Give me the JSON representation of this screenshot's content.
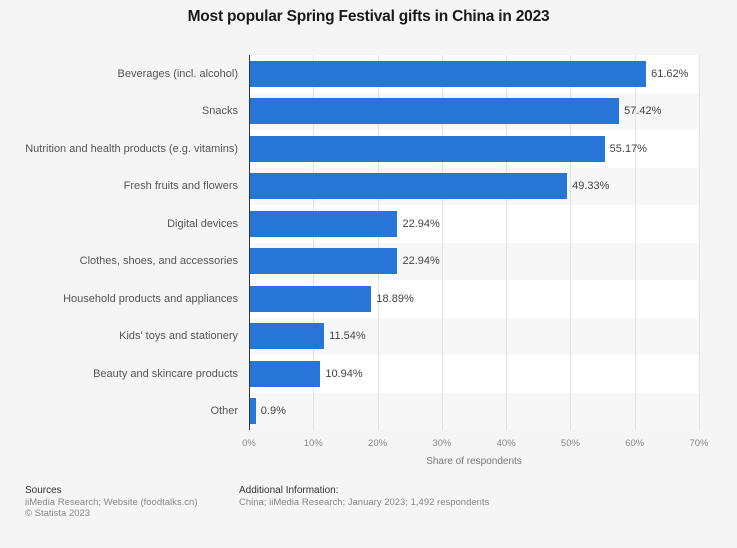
{
  "title": "Most popular Spring Festival gifts in China in 2023",
  "chart_data": {
    "type": "bar",
    "orientation": "horizontal",
    "title": "Most popular Spring Festival gifts in China in 2023",
    "categories": [
      "Beverages (incl. alcohol)",
      "Snacks",
      "Nutrition and health products (e.g. vitamins)",
      "Fresh fruits and flowers",
      "Digital devices",
      "Clothes, shoes, and accessories",
      "Household products and appliances",
      "Kids' toys and stationery",
      "Beauty and skincare products",
      "Other"
    ],
    "values": [
      61.62,
      57.42,
      55.17,
      49.33,
      22.94,
      22.94,
      18.89,
      11.54,
      10.94,
      0.9
    ],
    "value_labels": [
      "61.62%",
      "57.42%",
      "55.17%",
      "49.33%",
      "22.94%",
      "22.94%",
      "18.89%",
      "11.54%",
      "10.94%",
      "0.9%"
    ],
    "xlabel": "Share of respondents",
    "ylabel": "",
    "xlim": [
      0,
      70
    ],
    "xticks": [
      "0%",
      "10%",
      "20%",
      "30%",
      "40%",
      "50%",
      "60%",
      "70%"
    ],
    "grid": true,
    "legend": null,
    "bar_color": "#2875d8"
  },
  "footer": {
    "sources_heading": "Sources",
    "sources_text": "iiMedia Research; Website (foodtalks.cn)",
    "copyright": "© Statista 2023",
    "additional_heading": "Additional Information:",
    "additional_text": "China; iiMedia Research; January 2023; 1,492 respondents"
  }
}
